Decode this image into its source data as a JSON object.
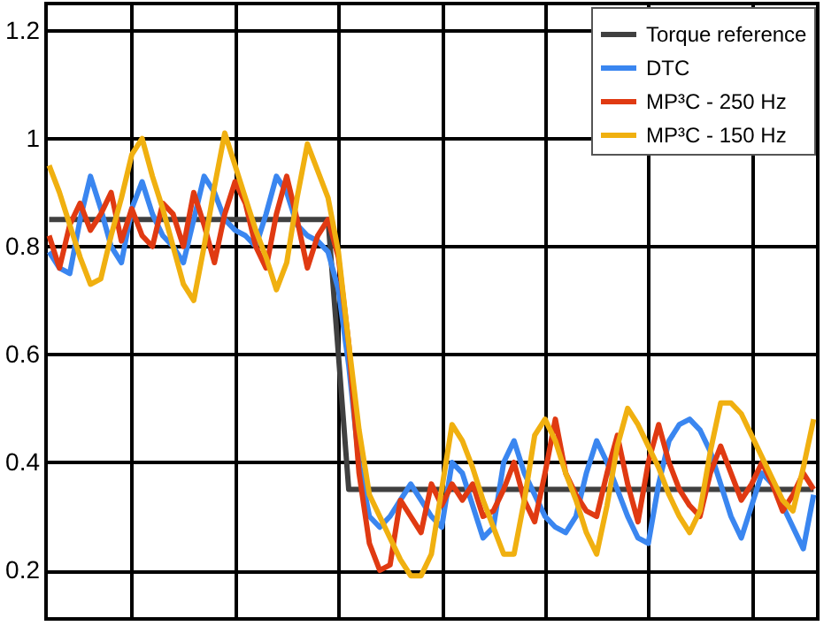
{
  "chart_data": {
    "type": "line",
    "ylim": [
      0.11,
      1.25
    ],
    "categories": [
      null,
      null,
      null,
      null,
      null,
      null,
      null,
      null,
      null,
      null,
      null,
      null,
      null,
      null,
      null,
      null,
      null,
      null,
      null,
      null,
      null,
      null,
      null,
      null,
      null,
      null,
      null,
      null,
      null,
      null,
      null,
      null,
      null,
      null,
      null,
      null,
      null,
      null,
      null,
      null,
      null,
      null,
      null,
      null,
      null,
      null,
      null,
      null,
      null,
      null,
      null,
      null,
      null,
      null,
      null,
      null,
      null,
      null,
      null,
      null,
      null,
      null,
      null,
      null,
      null,
      null,
      null,
      null,
      null,
      null,
      null,
      null,
      null,
      null,
      null
    ],
    "yticks": [
      0.2,
      0.4,
      0.6,
      0.8,
      {
        "value": 1,
        "label": "1"
      },
      1.2
    ],
    "tick_labels": "y",
    "grid": true,
    "legend": "top right",
    "line_style": "solid",
    "marker": "none",
    "series": [
      {
        "name": "Torque reference",
        "color": "#404040",
        "values": [
          0.85,
          0.85,
          0.85,
          0.85,
          0.85,
          0.85,
          0.85,
          0.85,
          0.85,
          0.85,
          0.85,
          0.85,
          0.85,
          0.85,
          0.85,
          0.85,
          0.85,
          0.85,
          0.85,
          0.85,
          0.85,
          0.85,
          0.85,
          0.85,
          0.85,
          0.85,
          0.85,
          0.85,
          0.6,
          0.35,
          0.35,
          0.35,
          0.35,
          0.35,
          0.35,
          0.35,
          0.35,
          0.35,
          0.35,
          0.35,
          0.35,
          0.35,
          0.35,
          0.35,
          0.35,
          0.35,
          0.35,
          0.35,
          0.35,
          0.35,
          0.35,
          0.35,
          0.35,
          0.35,
          0.35,
          0.35,
          0.35,
          0.35,
          0.35,
          0.35,
          0.35,
          0.35,
          0.35,
          0.35,
          0.35,
          0.35,
          0.35,
          0.35,
          0.35,
          0.35,
          0.35,
          0.35,
          0.35,
          0.35,
          0.35
        ]
      },
      {
        "name": "DTC",
        "color": "#3a86f0",
        "values": [
          0.79,
          0.76,
          0.75,
          0.85,
          0.93,
          0.87,
          0.8,
          0.77,
          0.87,
          0.92,
          0.86,
          0.82,
          0.8,
          0.77,
          0.85,
          0.93,
          0.9,
          0.85,
          0.83,
          0.82,
          0.8,
          0.86,
          0.93,
          0.9,
          0.84,
          0.82,
          0.81,
          0.79,
          0.72,
          0.58,
          0.4,
          0.3,
          0.28,
          0.3,
          0.33,
          0.36,
          0.33,
          0.3,
          0.28,
          0.4,
          0.38,
          0.32,
          0.26,
          0.28,
          0.4,
          0.44,
          0.38,
          0.34,
          0.3,
          0.28,
          0.27,
          0.3,
          0.38,
          0.44,
          0.4,
          0.35,
          0.3,
          0.26,
          0.25,
          0.36,
          0.44,
          0.47,
          0.48,
          0.46,
          0.42,
          0.36,
          0.3,
          0.26,
          0.32,
          0.38,
          0.36,
          0.32,
          0.28,
          0.24,
          0.34
        ]
      },
      {
        "name": "MP³C - 250 Hz",
        "color": "#e03a12",
        "values": [
          0.82,
          0.76,
          0.84,
          0.88,
          0.83,
          0.86,
          0.9,
          0.81,
          0.87,
          0.82,
          0.8,
          0.88,
          0.86,
          0.8,
          0.9,
          0.84,
          0.77,
          0.86,
          0.92,
          0.88,
          0.8,
          0.76,
          0.86,
          0.93,
          0.85,
          0.76,
          0.82,
          0.85,
          0.78,
          0.62,
          0.38,
          0.25,
          0.2,
          0.21,
          0.33,
          0.3,
          0.27,
          0.36,
          0.32,
          0.36,
          0.33,
          0.36,
          0.3,
          0.31,
          0.35,
          0.4,
          0.33,
          0.29,
          0.38,
          0.48,
          0.38,
          0.34,
          0.31,
          0.3,
          0.38,
          0.45,
          0.36,
          0.29,
          0.4,
          0.47,
          0.4,
          0.35,
          0.32,
          0.3,
          0.38,
          0.43,
          0.38,
          0.33,
          0.36,
          0.4,
          0.36,
          0.31,
          0.34,
          0.38,
          0.35
        ]
      },
      {
        "name": "MP³C - 150 Hz",
        "color": "#f0b010",
        "values": [
          0.95,
          0.9,
          0.84,
          0.78,
          0.73,
          0.74,
          0.82,
          0.89,
          0.97,
          1.0,
          0.93,
          0.87,
          0.8,
          0.73,
          0.7,
          0.8,
          0.91,
          1.01,
          0.95,
          0.89,
          0.83,
          0.78,
          0.72,
          0.77,
          0.89,
          0.99,
          0.94,
          0.89,
          0.79,
          0.62,
          0.46,
          0.34,
          0.3,
          0.26,
          0.22,
          0.19,
          0.19,
          0.23,
          0.35,
          0.47,
          0.44,
          0.39,
          0.33,
          0.28,
          0.23,
          0.23,
          0.33,
          0.45,
          0.48,
          0.44,
          0.38,
          0.33,
          0.27,
          0.23,
          0.32,
          0.43,
          0.5,
          0.47,
          0.43,
          0.39,
          0.34,
          0.3,
          0.27,
          0.31,
          0.42,
          0.51,
          0.51,
          0.49,
          0.45,
          0.41,
          0.37,
          0.33,
          0.31,
          0.39,
          0.48
        ]
      }
    ]
  }
}
